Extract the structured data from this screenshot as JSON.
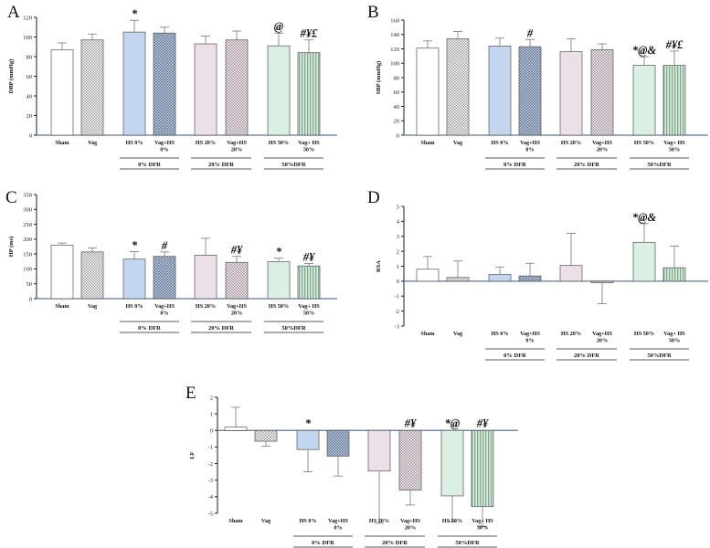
{
  "chart_data": [
    {
      "id": "A",
      "panel_label": "A",
      "type": "bar",
      "ylabel": "DBP (mmHg)",
      "ylim": [
        0,
        120
      ],
      "yticks": [
        0,
        20,
        40,
        60,
        80,
        100,
        120
      ],
      "categories": [
        "Sham",
        "Vag",
        "HS 0%",
        "Vag+HS 0%",
        "HS 20%",
        "Vag+HS 20%",
        "HS 50%",
        "Vag+ HS 50%"
      ],
      "values": [
        87,
        97,
        105,
        104,
        93,
        97,
        91,
        84
      ],
      "errors": [
        7,
        6,
        12,
        6,
        8,
        9,
        13,
        13
      ],
      "annotations": [
        "",
        "",
        "*",
        "",
        "",
        "",
        "@",
        "#¥£"
      ],
      "group_labels": [
        "0% DFR",
        "20% DFR",
        "50%DFR"
      ]
    },
    {
      "id": "B",
      "panel_label": "B",
      "type": "bar",
      "ylabel": "SBP (mmHg)",
      "ylim": [
        0,
        160
      ],
      "yticks": [
        0,
        20,
        40,
        60,
        80,
        100,
        120,
        140,
        160
      ],
      "categories": [
        "Sham",
        "Vag",
        "HS 0%",
        "Vag+HS 0%",
        "HS 20%",
        "Vag+HS 20%",
        "HS 50%",
        "Vag+ HS 50%"
      ],
      "values": [
        121,
        134,
        124,
        123,
        116,
        119,
        97,
        97
      ],
      "errors": [
        10,
        10,
        11,
        10,
        18,
        8,
        12,
        20
      ],
      "annotations": [
        "",
        "",
        "",
        "#",
        "",
        "",
        "*@&",
        "#¥£"
      ],
      "group_labels": [
        "0% DFR",
        "20% DFR",
        "50%DFR"
      ]
    },
    {
      "id": "C",
      "panel_label": "C",
      "type": "bar",
      "ylabel": "HP (ms)",
      "ylim": [
        0,
        350
      ],
      "yticks": [
        0,
        50,
        100,
        150,
        200,
        250,
        300,
        350
      ],
      "categories": [
        "Sham",
        "Vag",
        "HS 0%",
        "Vag+HS 0%",
        "HS 20%",
        "Vag+HS 20%",
        "HS 50%",
        "Vag+ HS 50%"
      ],
      "values": [
        180,
        157,
        133,
        142,
        146,
        122,
        124,
        110
      ],
      "errors": [
        7,
        14,
        25,
        15,
        57,
        20,
        12,
        8
      ],
      "annotations": [
        "",
        "",
        "*",
        "#",
        "",
        "#¥",
        "*",
        "#¥"
      ],
      "group_labels": [
        "0% DFR",
        "20% DFR",
        "50%DFR"
      ]
    },
    {
      "id": "D",
      "panel_label": "D",
      "type": "bar",
      "ylabel": "RSA",
      "ylim": [
        -3,
        5
      ],
      "yticks": [
        -3,
        -2,
        -1,
        0,
        1,
        2,
        3,
        4,
        5
      ],
      "categories": [
        "Sham",
        "Vag",
        "HS 0%",
        "Vag+HS 0%",
        "HS 20%",
        "Vag+HS 20%",
        "HS 50%",
        "Vag+ HS 50%"
      ],
      "values": [
        0.8,
        0.25,
        0.45,
        0.35,
        1.05,
        -0.1,
        2.6,
        0.9
      ],
      "errors": [
        0.85,
        1.1,
        0.5,
        0.85,
        2.15,
        1.4,
        1.25,
        1.45
      ],
      "annotations": [
        "",
        "",
        "",
        "",
        "",
        "",
        "*@&",
        ""
      ],
      "group_labels": [
        "0% DFR",
        "20% DFR",
        "50%DFR"
      ]
    },
    {
      "id": "E",
      "panel_label": "E",
      "type": "bar",
      "ylabel": "LF",
      "ylim": [
        -5,
        2
      ],
      "yticks": [
        -5,
        -4,
        -3,
        -2,
        -1,
        0,
        1,
        2
      ],
      "categories": [
        "Sham",
        "Vag",
        "HS 0%",
        "Vag+HS 0%",
        "HS 20%",
        "Vag+HS 20%",
        "HS 50%",
        "Vag+ HS 50%"
      ],
      "values": [
        0.2,
        -0.65,
        -1.15,
        -1.55,
        -2.45,
        -3.6,
        -3.95,
        -4.6
      ],
      "errors": [
        1.2,
        0.3,
        1.35,
        1.2,
        3.15,
        0.9,
        1.55,
        1.2
      ],
      "annotations": [
        "",
        "",
        "*",
        "",
        "",
        "#¥",
        "*@",
        "#¥"
      ],
      "group_labels": [
        "0% DFR",
        "20% DFR",
        "50%DFR"
      ]
    }
  ],
  "colors": {
    "sham": "#ffffff",
    "hs0": "#c3d6ef",
    "hs20": "#ece0e8",
    "hs50": "#daf0e3",
    "axis": "#1a1a2e",
    "zero_line": "#5a78a8"
  }
}
